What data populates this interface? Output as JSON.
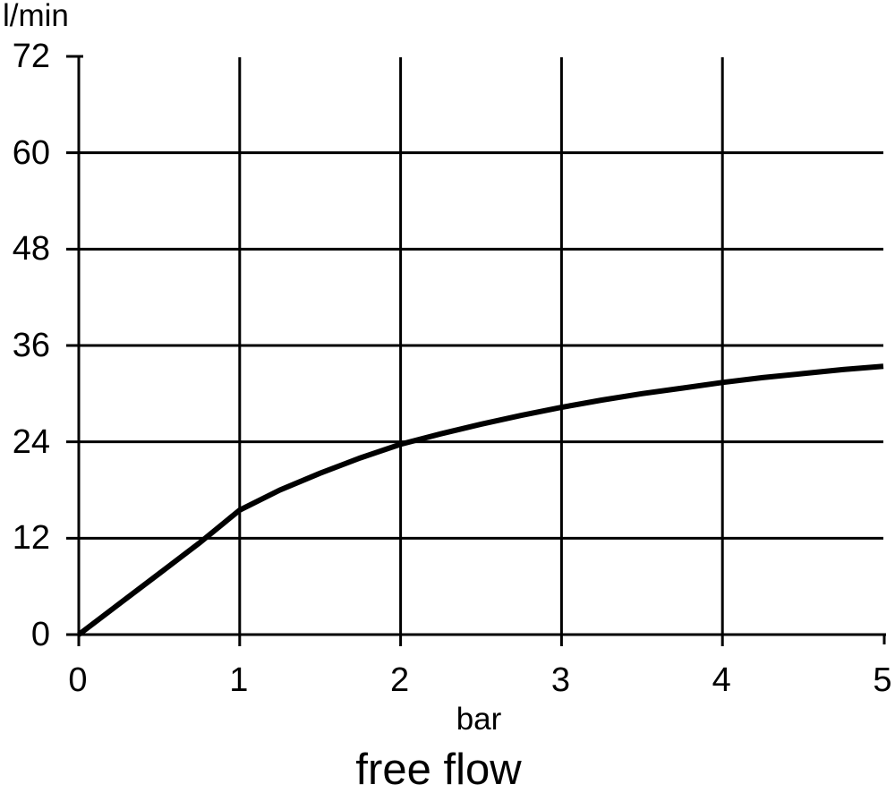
{
  "chart_data": {
    "type": "line",
    "title": "free flow",
    "xlabel": "bar",
    "ylabel": "l/min",
    "x_ticks": [
      0,
      1,
      2,
      3,
      4,
      5
    ],
    "y_ticks": [
      0,
      12,
      24,
      36,
      48,
      60,
      72
    ],
    "xlim": [
      0,
      5
    ],
    "ylim": [
      0,
      72
    ],
    "grid": true,
    "legend": "none",
    "line_color": "#000000",
    "grid_color": "#000000",
    "background_color": "#ffffff",
    "series": [
      {
        "name": "free flow",
        "points": [
          [
            0,
            0
          ],
          [
            0.25,
            3.8
          ],
          [
            0.5,
            7.6
          ],
          [
            0.75,
            11.4
          ],
          [
            1,
            15.5
          ],
          [
            1.25,
            18.0
          ],
          [
            1.5,
            20.1
          ],
          [
            1.75,
            22.0
          ],
          [
            2,
            23.7
          ],
          [
            2.25,
            25.0
          ],
          [
            2.5,
            26.2
          ],
          [
            2.75,
            27.3
          ],
          [
            3,
            28.3
          ],
          [
            3.25,
            29.2
          ],
          [
            3.5,
            30.0
          ],
          [
            3.75,
            30.7
          ],
          [
            4,
            31.4
          ],
          [
            4.25,
            32.0
          ],
          [
            4.5,
            32.5
          ],
          [
            4.75,
            33.0
          ],
          [
            5,
            33.4
          ]
        ]
      }
    ]
  }
}
